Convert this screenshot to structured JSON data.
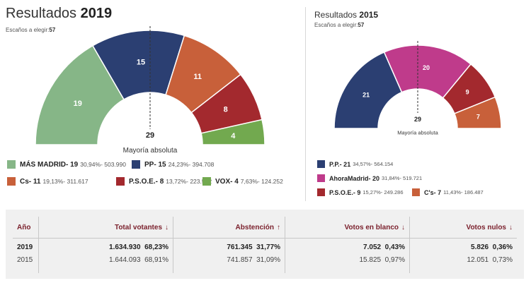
{
  "colors": {
    "mas_madrid": "#86b687",
    "pp": "#2b3f72",
    "cs": "#c8603a",
    "psoe": "#a3292e",
    "vox": "#72a94f",
    "ahora_madrid": "#bf3b8b",
    "header_text": "#7a1f2b"
  },
  "left": {
    "title": "Resultados",
    "year": "2019",
    "subtitle_label": "Escaños a elegir:",
    "subtitle_value": "57",
    "center_number": "29",
    "center_text": "Mayoría absoluta"
  },
  "right": {
    "title": "Resultados",
    "year": "2015",
    "subtitle_label": "Escaños a elegir:",
    "subtitle_value": "57",
    "center_number": "29",
    "center_text": "Mayoría absoluta"
  },
  "chart_data": [
    {
      "type": "pie",
      "title": "Resultados 2019",
      "subtitle": "Escaños a elegir:57",
      "total_seats": 57,
      "majority": 29,
      "majority_label": "Mayoría absoluta",
      "slices": [
        {
          "party": "MÁS MADRID",
          "seats": 19,
          "percent": "30,94%",
          "votes": "503.990",
          "color_key": "mas_madrid",
          "legend": "MÁS MADRID- 19",
          "detail": "30,94%- 503.990"
        },
        {
          "party": "PP",
          "seats": 15,
          "percent": "24,23%",
          "votes": "394.708",
          "color_key": "pp",
          "legend": "PP- 15",
          "detail": "24,23%- 394.708"
        },
        {
          "party": "Cs",
          "seats": 11,
          "percent": "19,13%",
          "votes": "311.617",
          "color_key": "cs",
          "legend": "Cs- 11",
          "detail": "19,13%- 311.617"
        },
        {
          "party": "P.S.O.E.",
          "seats": 8,
          "percent": "13,72%",
          "votes": "223.582",
          "color_key": "psoe",
          "legend": "P.S.O.E.- 8",
          "detail": "13,72%- 223.582"
        },
        {
          "party": "VOX",
          "seats": 4,
          "percent": "7,63%",
          "votes": "124.252",
          "color_key": "vox",
          "legend": "VOX- 4",
          "detail": "7,63%- 124.252"
        }
      ]
    },
    {
      "type": "pie",
      "title": "Resultados 2015",
      "subtitle": "Escaños a elegir:57",
      "total_seats": 57,
      "majority": 29,
      "majority_label": "Mayoría absoluta",
      "slices": [
        {
          "party": "P.P.",
          "seats": 21,
          "percent": "34,57%",
          "votes": "564.154",
          "color_key": "pp",
          "legend": "P.P.- 21",
          "detail": "34,57%- 564.154"
        },
        {
          "party": "AhoraMadrid",
          "seats": 20,
          "percent": "31,84%",
          "votes": "519.721",
          "color_key": "ahora_madrid",
          "legend": "AhoraMadrid- 20",
          "detail": "31,84%- 519.721"
        },
        {
          "party": "P.S.O.E.",
          "seats": 9,
          "percent": "15,27%",
          "votes": "249.286",
          "color_key": "psoe",
          "legend": "P.S.O.E.- 9",
          "detail": "15,27%- 249.286"
        },
        {
          "party": "C's",
          "seats": 7,
          "percent": "11,43%",
          "votes": "186.487",
          "color_key": "cs",
          "legend": "C's- 7",
          "detail": "11,43%- 186.487"
        }
      ]
    },
    {
      "type": "table",
      "columns": [
        "Año",
        "Total votantes",
        "Abstención",
        "Votos en blanco",
        "Votos nulos"
      ],
      "header_arrows": [
        "",
        "↓",
        "↑",
        "↓",
        "↓"
      ],
      "rows": [
        {
          "year": "2019",
          "total_votantes": "1.634.930",
          "total_pct": "68,23%",
          "abstencion": "761.345",
          "abst_pct": "31,77%",
          "blanco": "7.052",
          "blanco_pct": "0,43%",
          "nulos": "5.826",
          "nulos_pct": "0,36%"
        },
        {
          "year": "2015",
          "total_votantes": "1.644.093",
          "total_pct": "68,91%",
          "abstencion": "741.857",
          "abst_pct": "31,09%",
          "blanco": "15.825",
          "blanco_pct": "0,97%",
          "nulos": "12.051",
          "nulos_pct": "0,73%"
        }
      ]
    }
  ]
}
